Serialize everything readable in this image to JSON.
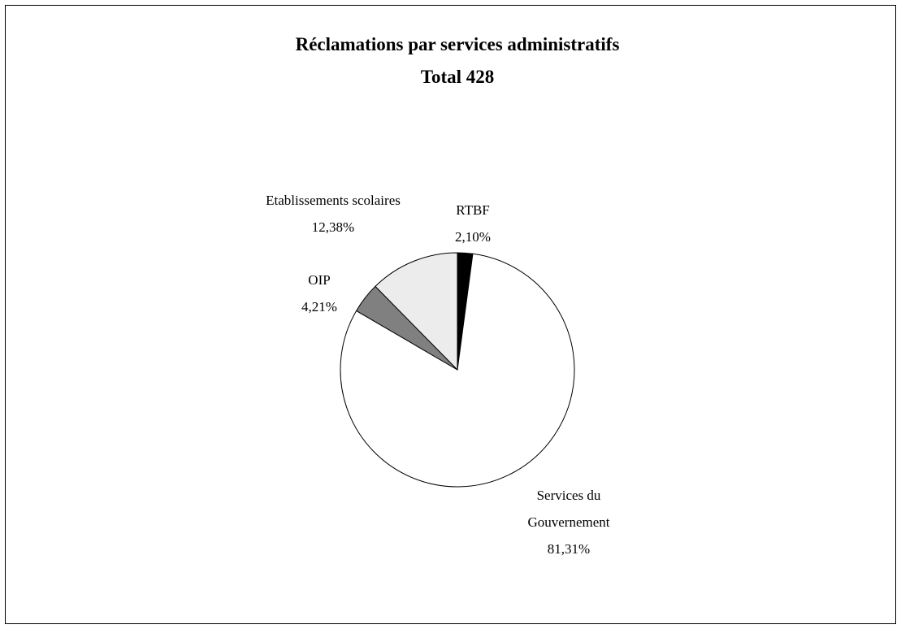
{
  "chart_data": {
    "type": "pie",
    "title": "Réclamations par services administratifs",
    "subtitle": "Total 428",
    "categories": [
      "RTBF",
      "Services du Gouvernement",
      "OIP",
      "Etablissements scolaires"
    ],
    "values": [
      2.1,
      81.31,
      4.21,
      12.38
    ],
    "value_labels": [
      "2,10%",
      "81,31%",
      "4,21%",
      "12,38%"
    ],
    "colors": [
      "#000000",
      "#ffffff",
      "#808080",
      "#ececec"
    ]
  }
}
